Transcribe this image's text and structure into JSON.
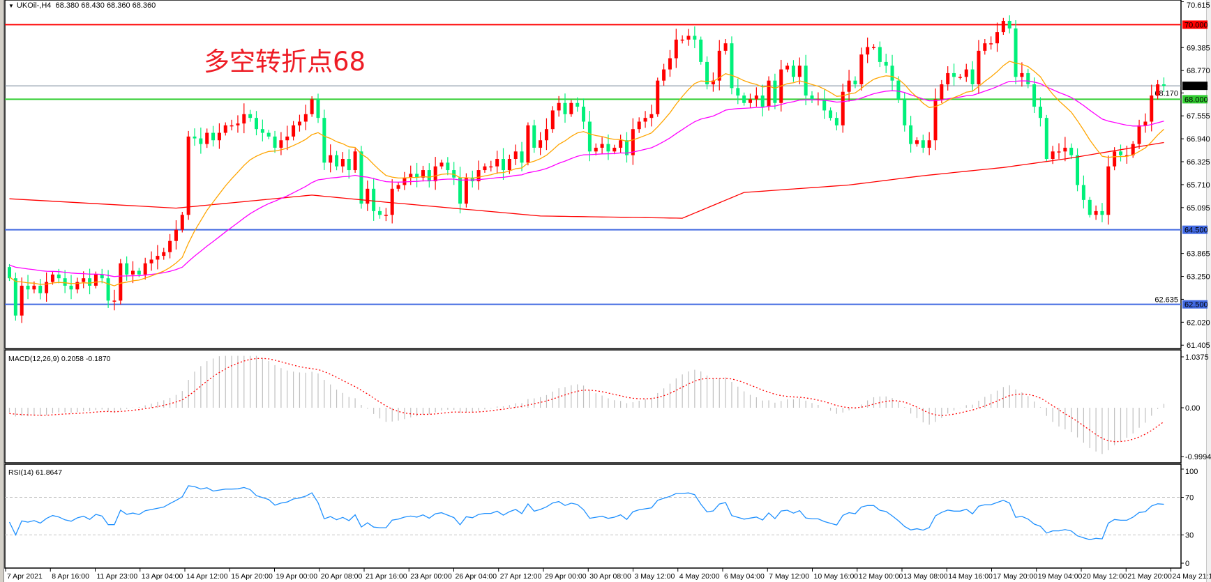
{
  "window": {
    "symbol_line": "UKOil-,H4  68.380 68.430 68.360 68.360",
    "annotation": "多空转折点68"
  },
  "price_axis": {
    "labels": [
      "70.615",
      "69.385",
      "68.770",
      "68.170",
      "67.555",
      "66.940",
      "66.325",
      "65.710",
      "65.095",
      "63.865",
      "63.250",
      "62.635",
      "62.020",
      "61.405"
    ],
    "levels": [
      {
        "value": "70.000",
        "color": "#ff0000",
        "line_color": "#ff0000"
      },
      {
        "value": "68.000",
        "color": "#32cd32",
        "line_color": "#32cd32"
      },
      {
        "value": "64.500",
        "color": "#4169e1",
        "line_color": "#4169e1"
      },
      {
        "value": "62.500",
        "color": "#4169e1",
        "line_color": "#4169e1"
      }
    ],
    "current_price": {
      "value": "68.360",
      "color": "#000000",
      "line_color": "#778899"
    }
  },
  "time_axis": {
    "labels": [
      "7 Apr 2021",
      "8 Apr 16:00",
      "11 Apr 23:00",
      "13 Apr 04:00",
      "14 Apr 12:00",
      "15 Apr 20:00",
      "19 Apr 00:00",
      "20 Apr 08:00",
      "21 Apr 16:00",
      "23 Apr 00:00",
      "26 Apr 04:00",
      "27 Apr 12:00",
      "29 Apr 00:00",
      "30 Apr 08:00",
      "3 May 12:00",
      "4 May 20:00",
      "6 May 04:00",
      "7 May 12:00",
      "10 May 16:00",
      "12 May 00:00",
      "13 May 08:00",
      "14 May 16:00",
      "17 May 20:00",
      "19 May 04:00",
      "20 May 12:00",
      "21 May 20:00",
      "24 May 21:15"
    ]
  },
  "macd": {
    "label": "MACD(12,26,9) 0.2058 -0.1870",
    "axis_labels": [
      "1.0375",
      "0.00",
      "-0.9994"
    ],
    "range": [
      -0.9994,
      1.0375
    ],
    "histogram_color": "#c0c0c0",
    "signal_color": "#ff0000"
  },
  "rsi": {
    "label": "RSI(14) 61.8647",
    "axis_labels": [
      "100",
      "70",
      "30",
      "0"
    ],
    "levels": [
      70,
      30
    ],
    "line_color": "#1e90ff"
  },
  "colors": {
    "bull": "#ff0000",
    "bear": "#00f07a",
    "ma_fast": "#ffa500",
    "ma_mid": "#ff00ff",
    "ma_slow": "#ff0000"
  },
  "chart_data": {
    "type": "candlestick",
    "ylim": [
      61.405,
      70.615
    ],
    "first_open": 63.5,
    "close": [
      63.2,
      62.2,
      63.0,
      62.9,
      63.0,
      62.8,
      63.1,
      63.3,
      63.2,
      63.0,
      62.9,
      63.1,
      63.2,
      63.0,
      63.3,
      63.2,
      62.6,
      62.6,
      63.6,
      63.3,
      63.4,
      63.3,
      63.6,
      63.7,
      63.8,
      63.9,
      64.2,
      64.5,
      64.9,
      67.0,
      66.95,
      66.8,
      67.1,
      66.9,
      67.1,
      67.3,
      67.3,
      67.35,
      67.6,
      67.5,
      67.2,
      67.1,
      67.0,
      66.7,
      66.9,
      67.0,
      67.3,
      67.4,
      67.6,
      68.0,
      67.5,
      66.3,
      66.5,
      66.2,
      66.4,
      66.1,
      66.6,
      65.2,
      65.6,
      65.0,
      64.9,
      64.9,
      65.6,
      65.7,
      65.9,
      66.0,
      65.9,
      66.1,
      65.8,
      66.2,
      66.3,
      66.1,
      65.9,
      65.2,
      65.9,
      65.8,
      66.1,
      66.2,
      66.2,
      66.4,
      66.1,
      66.4,
      66.6,
      66.3,
      67.3,
      66.7,
      66.9,
      67.2,
      67.7,
      67.9,
      67.6,
      67.9,
      67.8,
      67.4,
      66.6,
      66.7,
      66.8,
      66.6,
      66.7,
      66.9,
      66.5,
      67.2,
      67.4,
      67.5,
      67.6,
      68.5,
      68.8,
      69.1,
      69.6,
      69.6,
      69.7,
      69.6,
      69.0,
      68.4,
      68.5,
      69.3,
      69.5,
      68.3,
      68.1,
      67.9,
      68.0,
      68.1,
      67.8,
      68.5,
      67.9,
      68.8,
      68.9,
      68.6,
      68.9,
      68.1,
      68.0,
      68.0,
      67.7,
      67.5,
      67.3,
      68.2,
      68.5,
      68.4,
      69.2,
      69.4,
      69.4,
      69.0,
      68.9,
      68.5,
      68.0,
      67.3,
      66.8,
      66.9,
      66.7,
      66.9,
      68.0,
      68.4,
      68.7,
      68.6,
      68.6,
      68.8,
      68.4,
      69.3,
      69.5,
      69.5,
      69.8,
      70.1,
      69.9,
      68.6,
      68.7,
      68.4,
      67.8,
      67.5,
      66.4,
      66.6,
      66.6,
      66.7,
      66.5,
      65.7,
      65.3,
      64.9,
      65.0,
      64.9,
      66.2,
      66.6,
      66.5,
      66.5,
      66.8,
      67.3,
      67.4,
      68.1,
      68.4,
      68.36
    ],
    "ma_slow_samples": [
      [
        0,
        65.33
      ],
      [
        27,
        65.08
      ],
      [
        49,
        65.43
      ],
      [
        61,
        65.24
      ],
      [
        86,
        64.87
      ],
      [
        109,
        64.81
      ],
      [
        119,
        65.5
      ],
      [
        136,
        65.7
      ],
      [
        148,
        65.95
      ],
      [
        161,
        66.17
      ],
      [
        171,
        66.4
      ],
      [
        187,
        66.84
      ]
    ]
  }
}
